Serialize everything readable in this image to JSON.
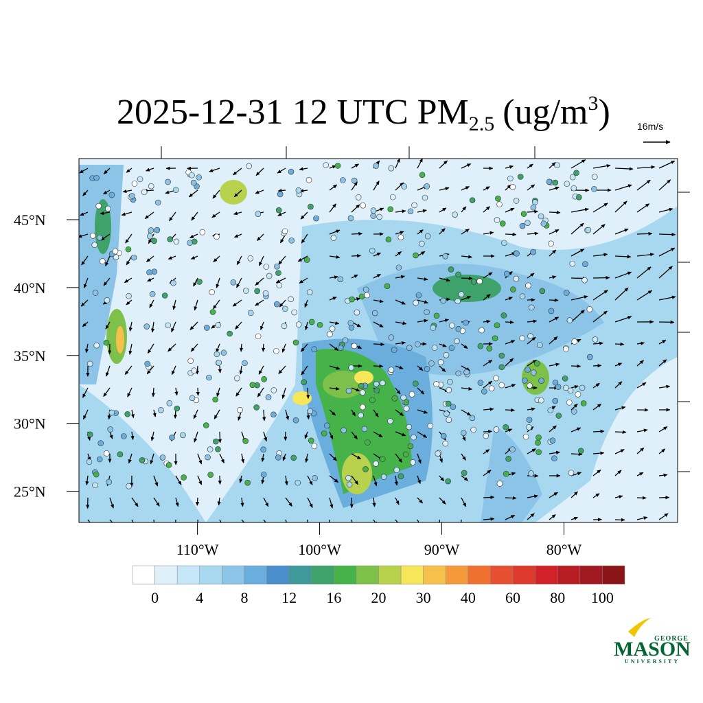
{
  "title": {
    "main": "2025-12-31 12 UTC PM",
    "subscript": "2.5",
    "unit": "(ug/m",
    "superscript": "3",
    "close": ")"
  },
  "wind_reference": "16m/s",
  "map": {
    "lonlim": [
      -119.7,
      -70.7
    ],
    "latlim": [
      22.7,
      49.5
    ],
    "lat_ticks": [
      {
        "value": 45,
        "label": "45°N"
      },
      {
        "value": 40,
        "label": "40°N"
      },
      {
        "value": 35,
        "label": "35°N"
      },
      {
        "value": 30,
        "label": "30°N"
      },
      {
        "value": 25,
        "label": "25°N"
      }
    ],
    "lon_ticks": [
      {
        "value": -110,
        "label": "110°W"
      },
      {
        "value": -100,
        "label": "100°W"
      },
      {
        "value": -90,
        "label": "90°W"
      },
      {
        "value": -80,
        "label": "80°W"
      }
    ]
  },
  "colorbar": {
    "colors": [
      "#ffffff",
      "#dff0fa",
      "#c5e6f7",
      "#a8d8f0",
      "#8cc4e8",
      "#6aaedd",
      "#4a8ecb",
      "#3e9a9a",
      "#3da36a",
      "#45b34a",
      "#7dc14a",
      "#b9d24e",
      "#f5e65a",
      "#f7c04a",
      "#f59a3a",
      "#f07030",
      "#e65030",
      "#dd3a2d",
      "#d02228",
      "#b81c24",
      "#a01820",
      "#8a1418"
    ],
    "ticks": [
      0,
      4,
      8,
      12,
      16,
      20,
      30,
      40,
      60,
      80,
      100
    ]
  },
  "logo": {
    "top": "GEORGE",
    "name": "MASON",
    "bottom": "UNIVERSITY"
  }
}
